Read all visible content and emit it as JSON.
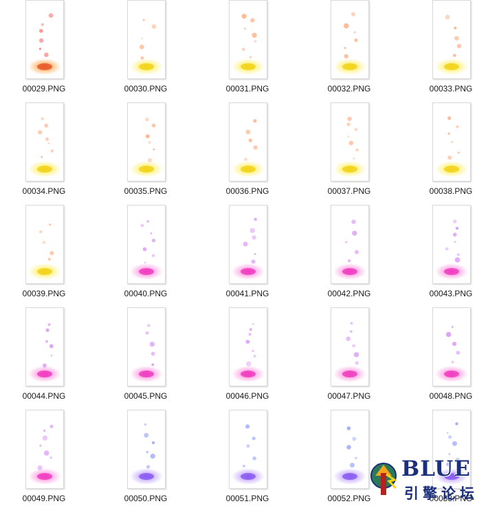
{
  "files": [
    {
      "name": "00029.PNG",
      "theme": "orange"
    },
    {
      "name": "00030.PNG",
      "theme": "yellow"
    },
    {
      "name": "00031.PNG",
      "theme": "yellow"
    },
    {
      "name": "00032.PNG",
      "theme": "yellow"
    },
    {
      "name": "00033.PNG",
      "theme": "yellow"
    },
    {
      "name": "00034.PNG",
      "theme": "yellow"
    },
    {
      "name": "00035.PNG",
      "theme": "yellow"
    },
    {
      "name": "00036.PNG",
      "theme": "yellow"
    },
    {
      "name": "00037.PNG",
      "theme": "yellow"
    },
    {
      "name": "00038.PNG",
      "theme": "yellow"
    },
    {
      "name": "00039.PNG",
      "theme": "yellow"
    },
    {
      "name": "00040.PNG",
      "theme": "pink"
    },
    {
      "name": "00041.PNG",
      "theme": "pink"
    },
    {
      "name": "00042.PNG",
      "theme": "pink"
    },
    {
      "name": "00043.PNG",
      "theme": "pink"
    },
    {
      "name": "00044.PNG",
      "theme": "pink"
    },
    {
      "name": "00045.PNG",
      "theme": "pink"
    },
    {
      "name": "00046.PNG",
      "theme": "pink"
    },
    {
      "name": "00047.PNG",
      "theme": "pink"
    },
    {
      "name": "00048.PNG",
      "theme": "pink"
    },
    {
      "name": "00049.PNG",
      "theme": "pink"
    },
    {
      "name": "00050.PNG",
      "theme": "violet"
    },
    {
      "name": "00051.PNG",
      "theme": "violet"
    },
    {
      "name": "00052.PNG",
      "theme": "violet"
    },
    {
      "name": "00053.PNG",
      "theme": "violet"
    }
  ],
  "themes": {
    "orange": {
      "core": "#e8582a",
      "glow": "#ffb060",
      "bubble": "#ff7f7f"
    },
    "yellow": {
      "core": "#f2d21a",
      "glow": "#fff070",
      "bubble": "#ffb38a"
    },
    "pink": {
      "core": "#f03cc0",
      "glow": "#ff9be0",
      "bubble": "#d99af5"
    },
    "violet": {
      "core": "#8a5cf0",
      "glow": "#c4a8ff",
      "bubble": "#9aa6ff"
    }
  },
  "watermark": {
    "brand": "BLUE",
    "subtitle": "引擎论坛"
  }
}
